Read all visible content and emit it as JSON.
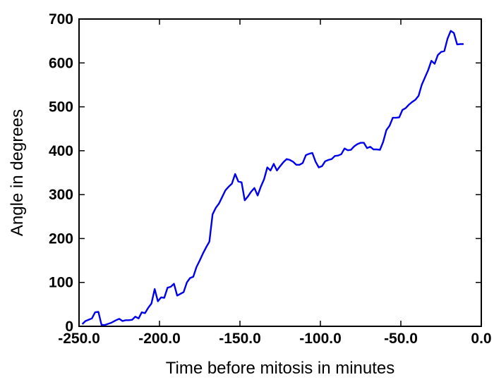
{
  "chart_data": {
    "type": "line",
    "title": "",
    "xlabel": "Time before mitosis in minutes",
    "ylabel": "Angle in degrees",
    "xlim": [
      -250,
      0
    ],
    "ylim": [
      0,
      700
    ],
    "xticks": [
      -250,
      -200,
      -150,
      -100,
      -50,
      0
    ],
    "xtick_labels": [
      "-250.0",
      "-200.0",
      "-150.0",
      "-100.0",
      "-50.0",
      "0.0"
    ],
    "yticks": [
      0,
      100,
      200,
      300,
      400,
      500,
      600,
      700
    ],
    "ytick_labels": [
      "0",
      "100",
      "200",
      "300",
      "400",
      "500",
      "600",
      "700"
    ],
    "grid": false,
    "series": [
      {
        "color": "#0000ee",
        "x": [
          -248,
          -246,
          -242,
          -240,
          -238,
          -236,
          -234,
          -230,
          -227,
          -225,
          -223,
          -221,
          -219,
          -217,
          -215,
          -213,
          -211,
          -209,
          -207,
          -205,
          -203,
          -201,
          -199,
          -197,
          -195,
          -193,
          -191,
          -189,
          -187,
          -185,
          -183,
          -181,
          -179,
          -177,
          -175,
          -173,
          -171,
          -169,
          -167,
          -165,
          -163,
          -161,
          -159,
          -157,
          -155,
          -153,
          -151,
          -149,
          -147,
          -145,
          -143,
          -141,
          -139,
          -137,
          -135,
          -133,
          -131,
          -129,
          -127,
          -125,
          -123,
          -121,
          -119,
          -117,
          -115,
          -113,
          -111,
          -109,
          -107,
          -105,
          -103,
          -101,
          -99,
          -97,
          -95,
          -93,
          -91,
          -89,
          -87,
          -85,
          -83,
          -81,
          -79,
          -77,
          -75,
          -73,
          -71,
          -69,
          -67,
          -65,
          -63,
          -61,
          -59,
          -57,
          -55,
          -53,
          -51,
          -49,
          -47,
          -45,
          -43,
          -41,
          -39,
          -37,
          -35,
          -33,
          -31,
          -29,
          -27,
          -25,
          -23,
          -21,
          -19,
          -17,
          -15,
          -13,
          -11
        ],
        "y": [
          5,
          12,
          18,
          32,
          33,
          3,
          3,
          8,
          14,
          17,
          12,
          14,
          14,
          15,
          22,
          18,
          32,
          30,
          42,
          52,
          85,
          57,
          66,
          65,
          88,
          90,
          97,
          70,
          74,
          78,
          100,
          110,
          113,
          135,
          150,
          166,
          180,
          193,
          255,
          270,
          280,
          295,
          310,
          318,
          325,
          347,
          330,
          328,
          287,
          296,
          307,
          315,
          298,
          318,
          335,
          362,
          355,
          370,
          355,
          365,
          374,
          381,
          379,
          375,
          368,
          368,
          372,
          390,
          393,
          395,
          375,
          362,
          365,
          376,
          379,
          381,
          388,
          389,
          392,
          405,
          401,
          402,
          410,
          415,
          418,
          418,
          406,
          409,
          403,
          403,
          402,
          420,
          447,
          457,
          475,
          475,
          476,
          493,
          497,
          505,
          511,
          516,
          525,
          550,
          567,
          584,
          605,
          598,
          618,
          625,
          627,
          655,
          673,
          668,
          642,
          643,
          643
        ]
      }
    ]
  }
}
